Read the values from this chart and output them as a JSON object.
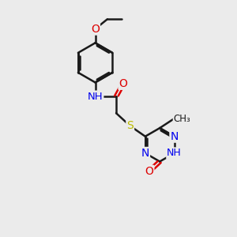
{
  "bg_color": "#ebebeb",
  "bond_color": "#1a1a1a",
  "N_color": "#0000ee",
  "O_color": "#dd0000",
  "S_color": "#bbbb00",
  "line_width": 1.8,
  "font_size": 10,
  "fig_size": [
    3.0,
    3.0
  ],
  "dpi": 100,
  "xlim": [
    0,
    10
  ],
  "ylim": [
    0,
    10
  ]
}
